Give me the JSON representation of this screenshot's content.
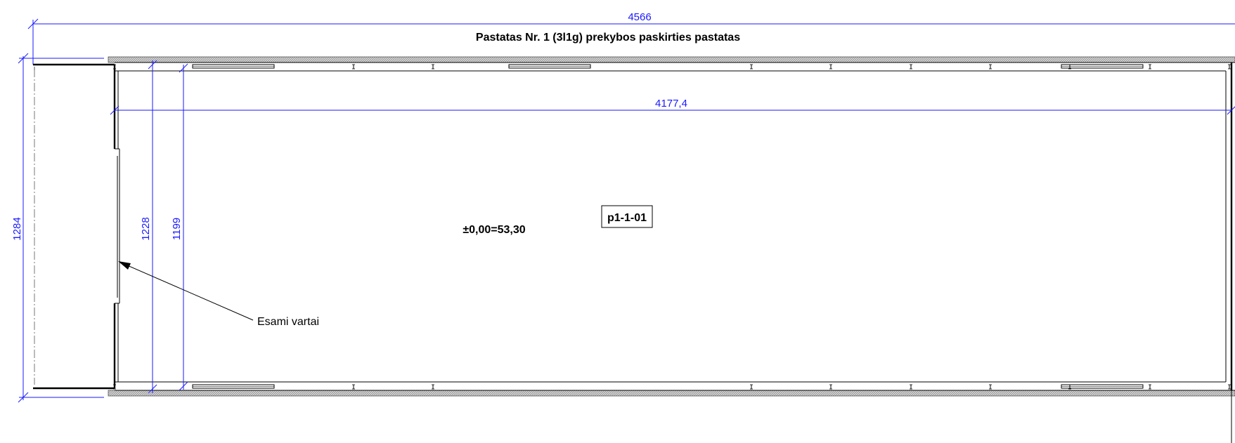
{
  "drawing": {
    "title": "Pastatas Nr. 1 (3l1g) prekybos paskirties pastatas",
    "elevation": "±0,00=53,30",
    "room_tag": "p1-1-01",
    "gate_label": "Esami vartai"
  },
  "dimensions": {
    "overall_width": "4566",
    "inner_width": "4177,4",
    "overall_height": "1284",
    "inner_height_a": "1228",
    "inner_height_b": "1199"
  },
  "colors": {
    "dimension": "#1a1aff",
    "lines": "#000000",
    "hatch": "#9a9a9a"
  }
}
